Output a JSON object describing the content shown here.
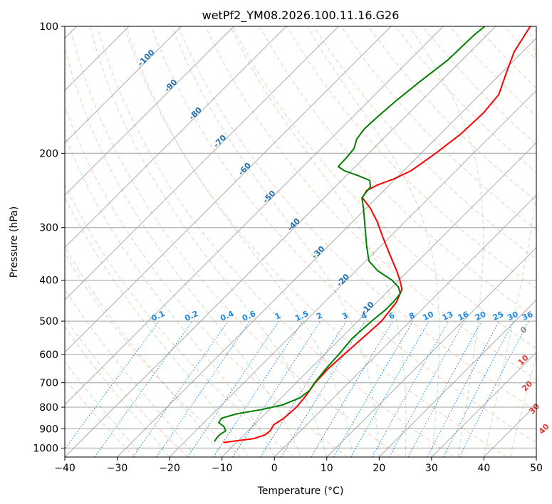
{
  "chart_data": {
    "type": "line",
    "title": "wetPf2_YM08.2026.100.11.16.G26",
    "xlabel": "Temperature (°C)",
    "ylabel": "Pressure (hPa)",
    "xlim": [
      -40,
      50
    ],
    "ylim": [
      1050,
      100
    ],
    "y_scale": "log",
    "skew": true,
    "grid": true,
    "x_ticks": [
      -40,
      -30,
      -20,
      -10,
      0,
      10,
      20,
      30,
      40,
      50
    ],
    "y_ticks": [
      100,
      200,
      300,
      400,
      500,
      600,
      700,
      800,
      900,
      1000
    ],
    "colors": {
      "temperature": "#ff0000",
      "dewpoint": "#008000",
      "dry_adiabat": "#ff8c5a",
      "moist_adiabat": "#4caf50",
      "mixing_ratio": "#1e88e5",
      "isotherm": "#888888",
      "wetbulb_label": "#e53935",
      "theta_label": "#1f6fae"
    },
    "series": [
      {
        "key": "temperature",
        "points": [
          {
            "p": 970,
            "t": -12.5
          },
          {
            "p": 960,
            "t": -10
          },
          {
            "p": 950,
            "t": -7.5
          },
          {
            "p": 930,
            "t": -6
          },
          {
            "p": 910,
            "t": -5.8
          },
          {
            "p": 880,
            "t": -6.3
          },
          {
            "p": 850,
            "t": -5.6
          },
          {
            "p": 800,
            "t": -5.3
          },
          {
            "p": 750,
            "t": -5.7
          },
          {
            "p": 700,
            "t": -6.4
          },
          {
            "p": 650,
            "t": -6.6
          },
          {
            "p": 600,
            "t": -6.3
          },
          {
            "p": 550,
            "t": -5.9
          },
          {
            "p": 500,
            "t": -5.5
          },
          {
            "p": 450,
            "t": -6.3
          },
          {
            "p": 420,
            "t": -7.7
          },
          {
            "p": 400,
            "t": -9.8
          },
          {
            "p": 380,
            "t": -12.2
          },
          {
            "p": 350,
            "t": -16.3
          },
          {
            "p": 320,
            "t": -20.7
          },
          {
            "p": 290,
            "t": -25.4
          },
          {
            "p": 270,
            "t": -29.2
          },
          {
            "p": 255,
            "t": -32.7
          },
          {
            "p": 245,
            "t": -33.3
          },
          {
            "p": 238,
            "t": -32.3
          },
          {
            "p": 230,
            "t": -30.3
          },
          {
            "p": 220,
            "t": -28.6
          },
          {
            "p": 200,
            "t": -27.2
          },
          {
            "p": 180,
            "t": -26.1
          },
          {
            "p": 160,
            "t": -25.8
          },
          {
            "p": 145,
            "t": -26.4
          },
          {
            "p": 130,
            "t": -28.9
          },
          {
            "p": 115,
            "t": -31.6
          },
          {
            "p": 100,
            "t": -33.4
          }
        ]
      },
      {
        "key": "dewpoint",
        "points": [
          {
            "p": 965,
            "t": -14.4
          },
          {
            "p": 950,
            "t": -14.6
          },
          {
            "p": 930,
            "t": -14.7
          },
          {
            "p": 910,
            "t": -14.3
          },
          {
            "p": 890,
            "t": -15.4
          },
          {
            "p": 870,
            "t": -17.2
          },
          {
            "p": 850,
            "t": -17.5
          },
          {
            "p": 830,
            "t": -15.5
          },
          {
            "p": 810,
            "t": -11.4
          },
          {
            "p": 790,
            "t": -8.4
          },
          {
            "p": 760,
            "t": -6.4
          },
          {
            "p": 730,
            "t": -6
          },
          {
            "p": 700,
            "t": -6.5
          },
          {
            "p": 650,
            "t": -7
          },
          {
            "p": 600,
            "t": -7.3
          },
          {
            "p": 550,
            "t": -7.8
          },
          {
            "p": 500,
            "t": -7.4
          },
          {
            "p": 470,
            "t": -6.9
          },
          {
            "p": 450,
            "t": -6.9
          },
          {
            "p": 430,
            "t": -7.2
          },
          {
            "p": 415,
            "t": -8.8
          },
          {
            "p": 400,
            "t": -11.3
          },
          {
            "p": 380,
            "t": -15.8
          },
          {
            "p": 360,
            "t": -19.4
          },
          {
            "p": 330,
            "t": -22.9
          },
          {
            "p": 300,
            "t": -26.5
          },
          {
            "p": 270,
            "t": -30.5
          },
          {
            "p": 255,
            "t": -32.8
          },
          {
            "p": 240,
            "t": -33.3
          },
          {
            "p": 232,
            "t": -34.6
          },
          {
            "p": 226,
            "t": -37.7
          },
          {
            "p": 220,
            "t": -41.3
          },
          {
            "p": 215,
            "t": -43.3
          },
          {
            "p": 205,
            "t": -43.4
          },
          {
            "p": 195,
            "t": -43.7
          },
          {
            "p": 185,
            "t": -45
          },
          {
            "p": 175,
            "t": -45.5
          },
          {
            "p": 165,
            "t": -45.3
          },
          {
            "p": 150,
            "t": -44.8
          },
          {
            "p": 135,
            "t": -43.9
          },
          {
            "p": 120,
            "t": -42.7
          },
          {
            "p": 105,
            "t": -42.5
          },
          {
            "p": 100,
            "t": -42.1
          }
        ]
      }
    ],
    "isotherms": [
      -120,
      -110,
      -100,
      -90,
      -80,
      -70,
      -60,
      -50,
      -40,
      -30,
      -20,
      -10,
      0,
      10,
      20,
      30,
      40,
      50
    ],
    "mixing_ratio_labels": [
      "0.1",
      "0.2",
      "0.4",
      "0.6",
      "1",
      "1.5",
      "2",
      "3",
      "4",
      "6",
      "8",
      "10",
      "13",
      "16",
      "20",
      "25",
      "30",
      "36"
    ],
    "theta_labels": [
      "-100",
      "-90",
      "-80",
      "-70",
      "-60",
      "-50",
      "-40",
      "-30",
      "-20",
      "-10"
    ],
    "wetbulb_labels": [
      "0",
      "10",
      "20",
      "30",
      "40"
    ]
  }
}
